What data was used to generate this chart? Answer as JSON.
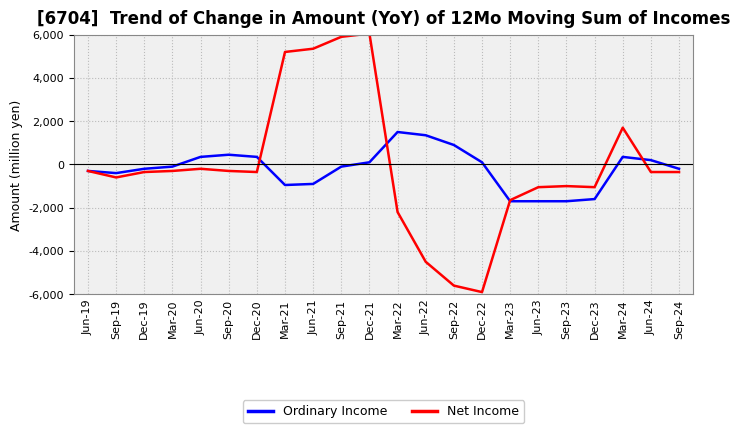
{
  "title": "[6704]  Trend of Change in Amount (YoY) of 12Mo Moving Sum of Incomes",
  "ylabel": "Amount (million yen)",
  "background_color": "#ffffff",
  "plot_bg_color": "#f0f0f0",
  "grid_color": "#bbbbbb",
  "x_labels": [
    "Jun-19",
    "Sep-19",
    "Dec-19",
    "Mar-20",
    "Jun-20",
    "Sep-20",
    "Dec-20",
    "Mar-21",
    "Jun-21",
    "Sep-21",
    "Dec-21",
    "Mar-22",
    "Jun-22",
    "Sep-22",
    "Dec-22",
    "Mar-23",
    "Jun-23",
    "Sep-23",
    "Dec-23",
    "Mar-24",
    "Jun-24",
    "Sep-24"
  ],
  "ordinary_income": [
    -300,
    -400,
    -200,
    -100,
    350,
    450,
    350,
    -950,
    -900,
    -100,
    100,
    1500,
    1350,
    900,
    100,
    -1700,
    -1700,
    -1700,
    -1600,
    350,
    200,
    -200
  ],
  "net_income": [
    -300,
    -600,
    -350,
    -300,
    -200,
    -300,
    -350,
    5200,
    5350,
    5900,
    6050,
    -2200,
    -4500,
    -5600,
    -5900,
    -1650,
    -1050,
    -1000,
    -1050,
    1700,
    -350,
    -350
  ],
  "ordinary_color": "#0000ff",
  "net_color": "#ff0000",
  "ylim": [
    -6000,
    6000
  ],
  "yticks": [
    -6000,
    -4000,
    -2000,
    0,
    2000,
    4000,
    6000
  ],
  "line_width": 1.8,
  "title_fontsize": 12,
  "axis_label_fontsize": 9,
  "tick_label_fontsize": 8,
  "legend_labels": [
    "Ordinary Income",
    "Net Income"
  ],
  "legend_fontsize": 9
}
